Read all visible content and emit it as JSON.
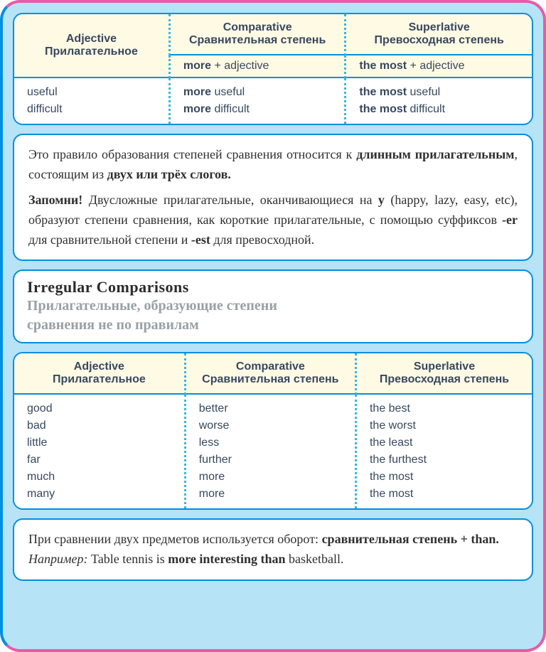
{
  "colors": {
    "outer_border_right": "#e85ba8",
    "outer_border_left": "#008fe0",
    "panel_border": "#008fe0",
    "panel_bg": "#ffffff",
    "header_bg": "#fffae3",
    "page_bg": "#b7e3f6",
    "dot_sep": "#35b7df",
    "text": "#374860",
    "gray_title": "#9aa0a6"
  },
  "typography": {
    "table_font": "Verdana",
    "body_font": "Georgia",
    "table_fontsize": 16,
    "body_fontsize": 18,
    "title_en_fontsize": 22,
    "title_ru_fontsize": 20
  },
  "table1": {
    "headers": {
      "c1_en": "Adjective",
      "c1_ru": "Прилагательное",
      "c2_en": "Comparative",
      "c2_ru": "Сравнительная степень",
      "c3_en": "Superlative",
      "c3_ru": "Превосходная степень"
    },
    "formula": {
      "c2_b": "more",
      "c2_rest": " + adjective",
      "c3_b": "the most",
      "c3_rest": " + adjective"
    },
    "rows": {
      "r1c1": "useful",
      "r1c2_b": "more",
      "r1c2": " useful",
      "r1c3_b": "the most",
      "r1c3": " useful",
      "r2c1": "difficult",
      "r2c2_b": "more",
      "r2c2": " difficult",
      "r2c3_b": "the most",
      "r2c3": " difficult"
    }
  },
  "explain1": {
    "p1a": "Это правило образования степеней сравнения относится к ",
    "p1b": "длинным прилагательным",
    "p1c": ", состоящим из ",
    "p1d": "двух или трёх слогов.",
    "p2a": "Запомни!",
    "p2b": " Двусложные прилагательные, оканчивающиеся на ",
    "p2c": "y",
    "p2d": " (happy, lazy, easy, etc), образуют степени сравнения, как короткие прилагательные, с помощью суффиксов ",
    "p2e": "-er",
    "p2f": " для сравнительной степени и ",
    "p2g": "-est",
    "p2h": " для превосходной."
  },
  "section": {
    "en": "Irregular Comparisons",
    "ru1": "Прилагательные, образующие степени",
    "ru2": "сравнения не по правилам"
  },
  "table2": {
    "headers": {
      "c1_en": "Adjective",
      "c1_ru": "Прилагательное",
      "c2_en": "Comparative",
      "c2_ru": "Сравнительная степень",
      "c3_en": "Superlative",
      "c3_ru": "Превосходная степень"
    },
    "rows": [
      {
        "c1": "good",
        "c2": "better",
        "c3": "the best"
      },
      {
        "c1": "bad",
        "c2": "worse",
        "c3": "the worst"
      },
      {
        "c1": "little",
        "c2": "less",
        "c3": "the least"
      },
      {
        "c1": "far",
        "c2": "further",
        "c3": "the furthest"
      },
      {
        "c1": "much",
        "c2": "more",
        "c3": "the most"
      },
      {
        "c1": "many",
        "c2": "more",
        "c3": "the most"
      }
    ]
  },
  "explain2": {
    "p1a": "При сравнении двух предметов используется оборот: ",
    "p1b": "сравнительная степень + than.",
    "p2a": "Например:",
    "p2b": " Table tennis is ",
    "p2c": "more interesting than",
    "p2d": " basketball."
  }
}
